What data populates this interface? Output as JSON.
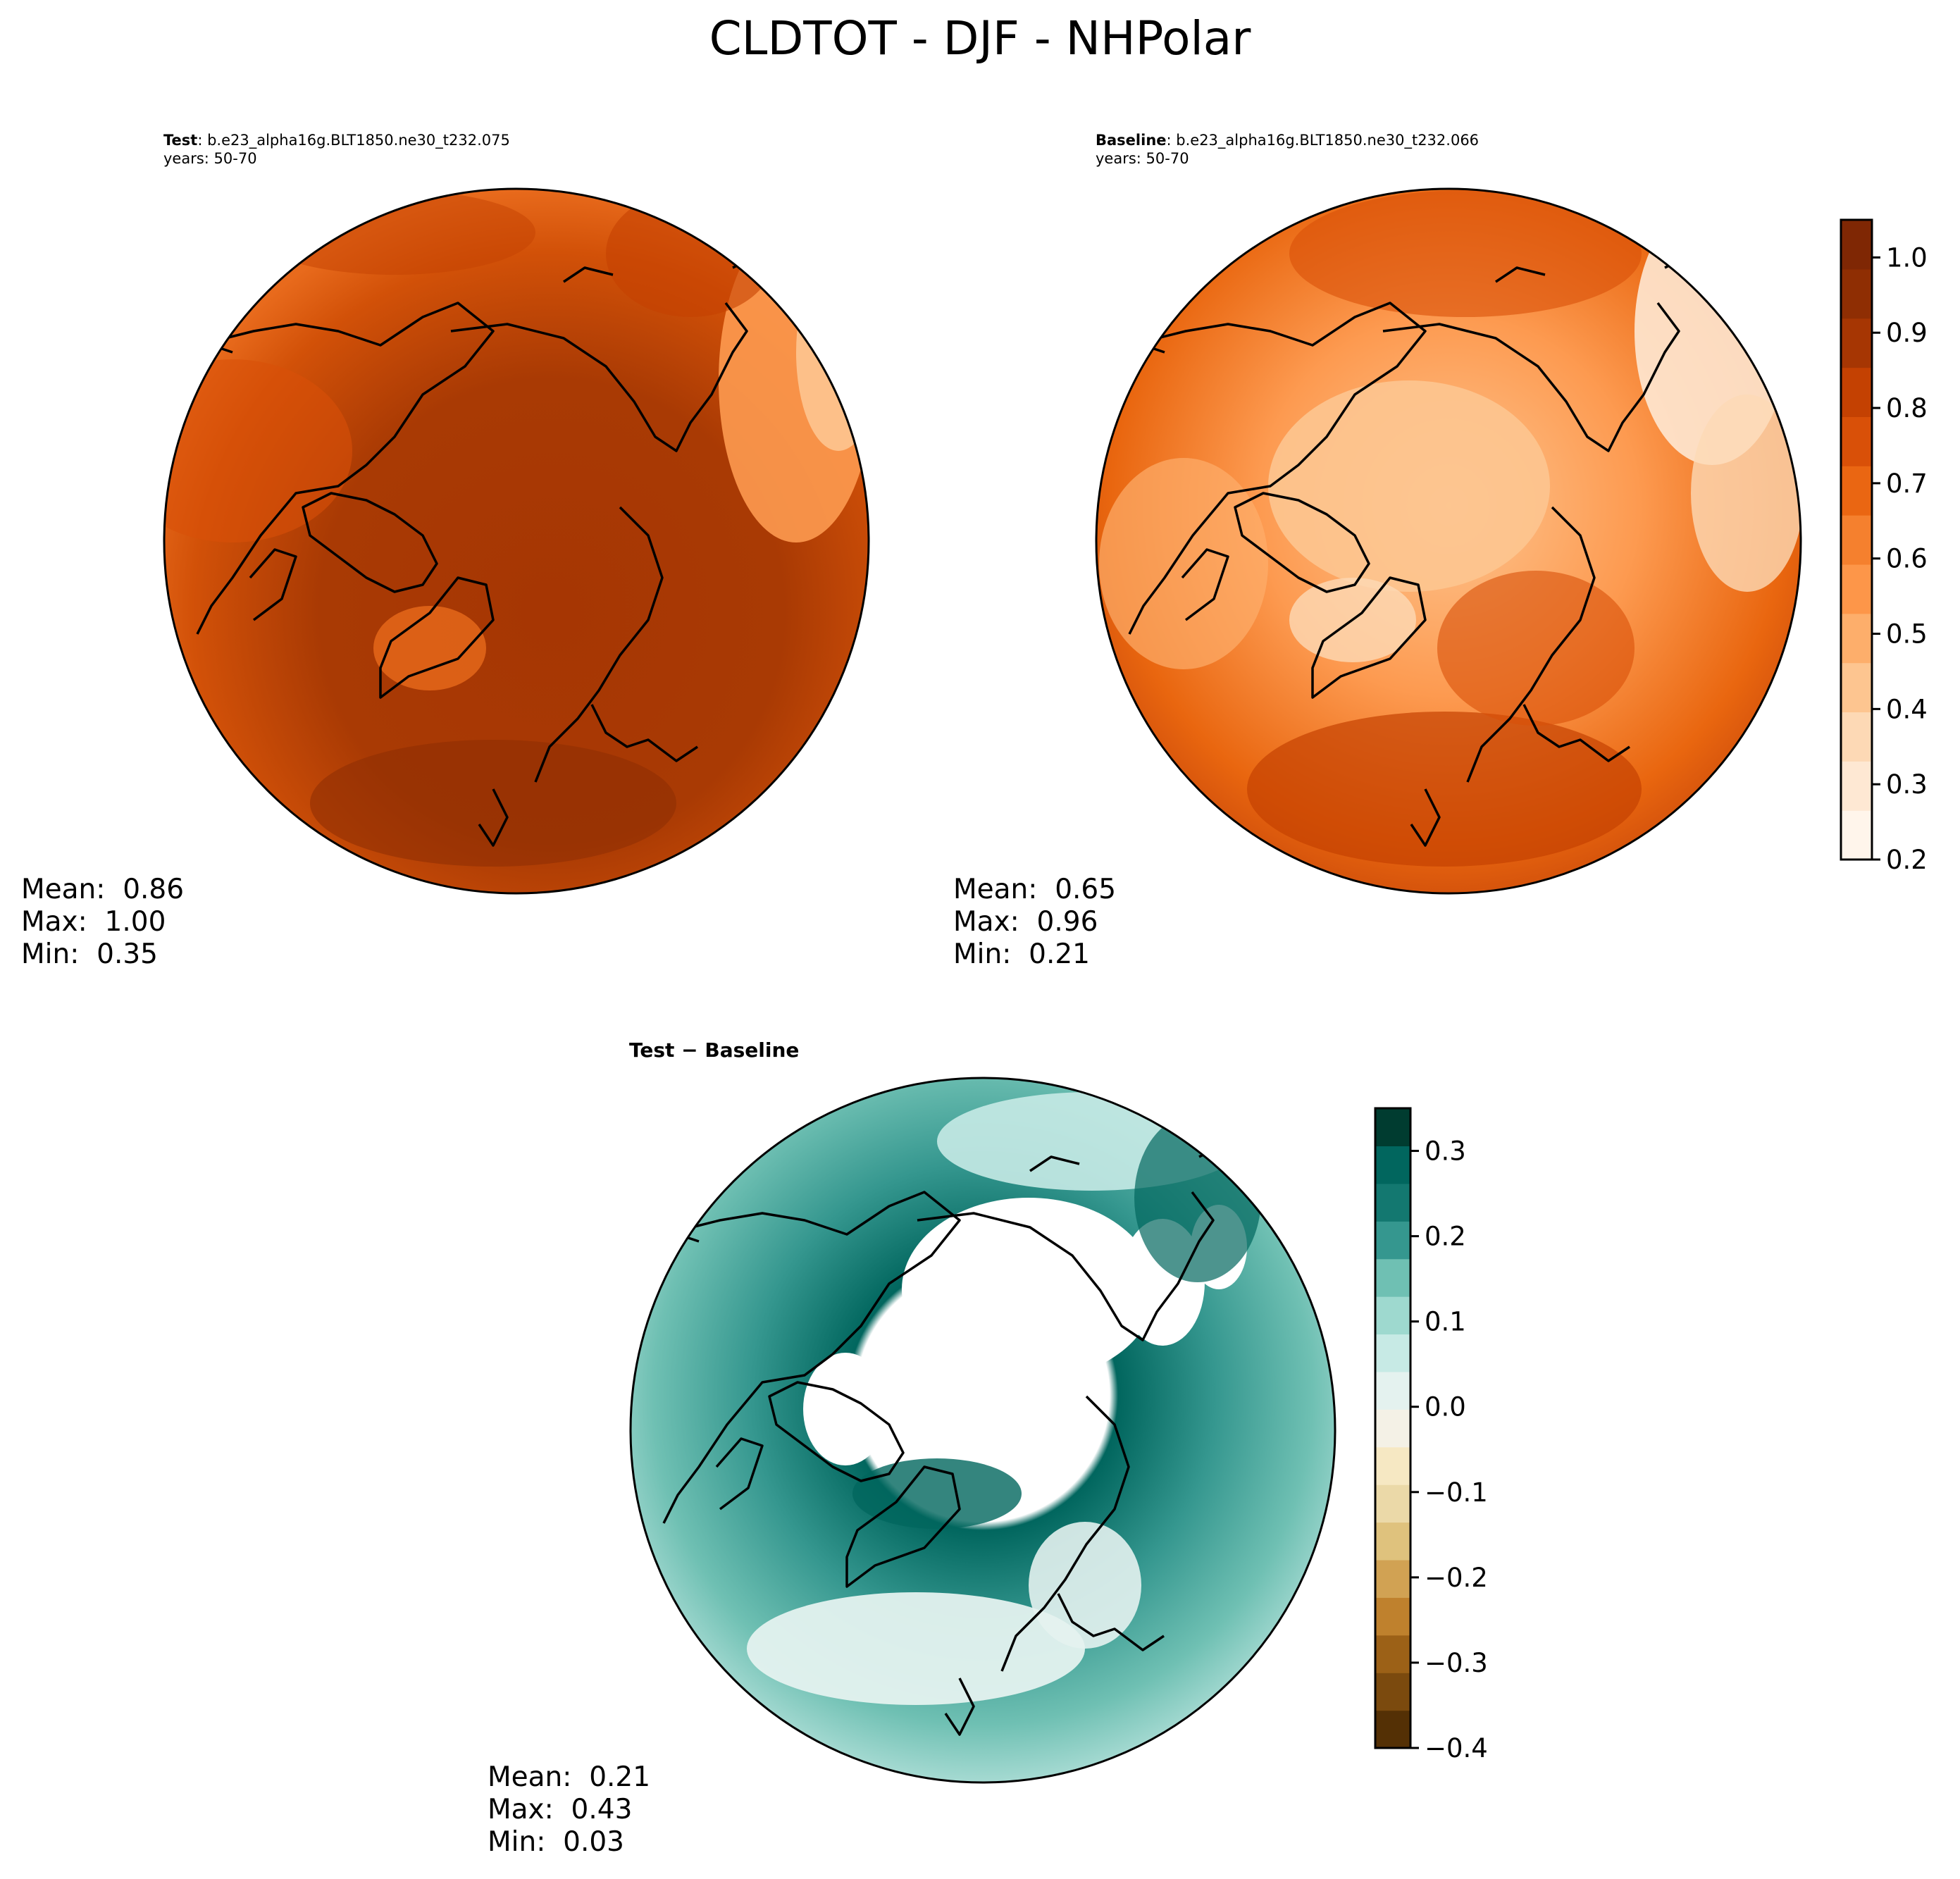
{
  "page": {
    "title": "CLDTOT - DJF - NHPolar"
  },
  "panels": {
    "test": {
      "label": "Test",
      "case": ": b.e23_alpha16g.BLT1850.ne30_t232.075",
      "years": "years: 50-70",
      "stats": {
        "mean": "Mean:  0.86",
        "max": "Max:  1.00",
        "min": "Min:  0.35"
      }
    },
    "baseline": {
      "label": "Baseline",
      "case": ": b.e23_alpha16g.BLT1850.ne30_t232.066",
      "years": "years: 50-70",
      "stats": {
        "mean": "Mean:  0.65",
        "max": "Max:  0.96",
        "min": "Min:  0.21"
      }
    },
    "diff": {
      "title": "Test − Baseline",
      "stats": {
        "mean": "Mean:  0.21",
        "max": "Max:  0.43",
        "min": "Min:  0.03"
      }
    }
  },
  "chart_data": [
    {
      "type": "heatmap",
      "projection": "north-polar-stereographic",
      "name": "Test",
      "variable": "CLDTOT",
      "season": "DJF",
      "mean": 0.86,
      "max": 1.0,
      "min": 0.35,
      "colormap": "Oranges",
      "clim": [
        0.2,
        1.05
      ]
    },
    {
      "type": "heatmap",
      "projection": "north-polar-stereographic",
      "name": "Baseline",
      "variable": "CLDTOT",
      "season": "DJF",
      "mean": 0.65,
      "max": 0.96,
      "min": 0.21,
      "colormap": "Oranges",
      "clim": [
        0.2,
        1.05
      ],
      "colorbar": {
        "ticks": [
          0.2,
          0.3,
          0.4,
          0.5,
          0.6,
          0.7,
          0.8,
          0.9,
          1.0
        ],
        "tick_labels": [
          "0.2",
          "0.3",
          "0.4",
          "0.5",
          "0.6",
          "0.7",
          "0.8",
          "0.9",
          "1.0"
        ],
        "colors": [
          "#fff5eb",
          "#fee8d3",
          "#fdd9b5",
          "#fdc590",
          "#fdae6b",
          "#fd9649",
          "#f5802e",
          "#ea6612",
          "#d95008",
          "#c44102",
          "#a63603",
          "#8f2e03",
          "#7f2704"
        ]
      }
    },
    {
      "type": "heatmap",
      "projection": "north-polar-stereographic",
      "name": "Test - Baseline",
      "mean": 0.21,
      "max": 0.43,
      "min": 0.03,
      "colormap": "BrBG",
      "clim": [
        -0.4,
        0.35
      ],
      "colorbar": {
        "ticks": [
          -0.4,
          -0.3,
          -0.2,
          -0.1,
          0.0,
          0.1,
          0.2,
          0.3
        ],
        "tick_labels": [
          "−0.4",
          "−0.3",
          "−0.2",
          "−0.1",
          "0.0",
          "0.1",
          "0.2",
          "0.3"
        ],
        "colors": [
          "#543005",
          "#7b4a0e",
          "#9c6117",
          "#bf812d",
          "#d1a253",
          "#dfc27d",
          "#ebd9a8",
          "#f6e8c3",
          "#f4f1e6",
          "#e4f2ef",
          "#c7eae5",
          "#9ed9cf",
          "#6fc0b3",
          "#35978f",
          "#137870",
          "#01665e",
          "#003c30"
        ]
      }
    }
  ]
}
